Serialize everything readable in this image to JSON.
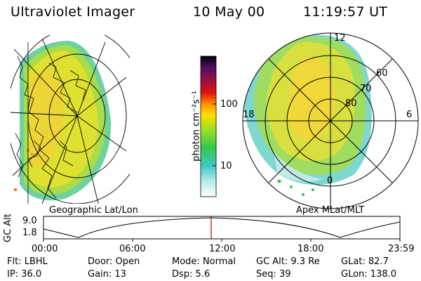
{
  "header": {
    "instrument": "Ultraviolet Imager",
    "date": "10 May 00",
    "time": "11:19:57 UT"
  },
  "colorbar": {
    "unit_label": "photon cm⁻²s⁻¹",
    "ticks": [
      "100",
      "10"
    ]
  },
  "panels": {
    "geo_label": "Geographic Lat/Lon",
    "apex_label": "Apex  MLat/MLT",
    "apex_lat_labels": [
      "60",
      "70",
      "80"
    ],
    "apex_mlt_labels": [
      "12",
      "18",
      "6",
      "0"
    ]
  },
  "timeline": {
    "ylabel": "GC Alt",
    "yticks": [
      "9.0",
      "1.8"
    ],
    "xticks": [
      "00:00",
      "06:00",
      "12:00",
      "18:00",
      "23:59"
    ]
  },
  "info": {
    "flt": "Flt: LBHL",
    "ip": "IP: 36.0",
    "door": "Door: Open",
    "gain": "Gain: 13",
    "mode": "Mode: Normal",
    "dsp": "Dsp:    5.6",
    "gcalt": "GC Alt: 9.3 Re",
    "seq": "Seq: 39",
    "glat": "GLat:  82.7",
    "glon": "GLon: 138.0"
  }
}
